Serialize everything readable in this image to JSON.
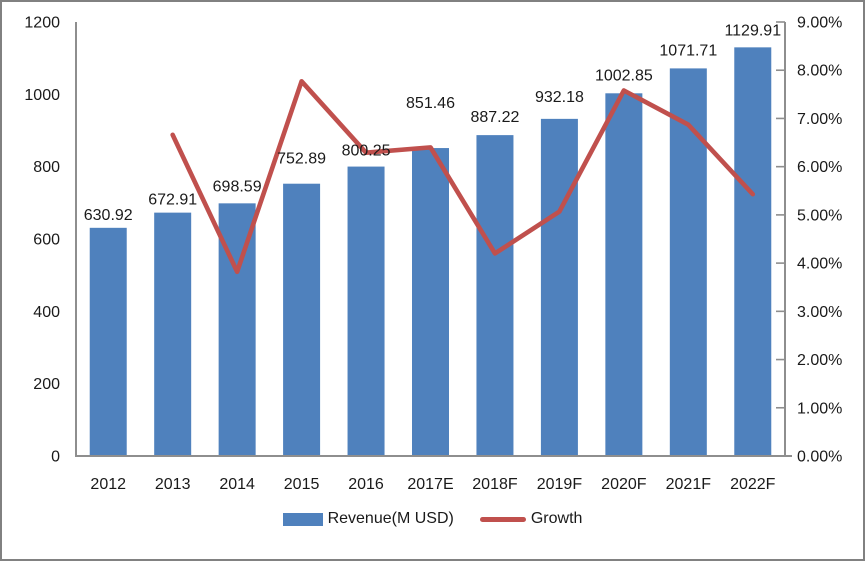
{
  "frame": {
    "background": "#ffffff",
    "border_color": "#818181"
  },
  "chart_data": {
    "type": "bar",
    "subtype": "bar+line combo, dual axis",
    "title": "",
    "xlabel": "",
    "ylabel": "",
    "grid": false,
    "legend_position": "bottom",
    "text_color": "#1a1a1a",
    "axis_color": "#8e8e8e",
    "categories": [
      "2012",
      "2013",
      "2014",
      "2015",
      "2016",
      "2017E",
      "2018F",
      "2019F",
      "2020F",
      "2021F",
      "2022F"
    ],
    "series": [
      {
        "name": "Revenue(M USD)",
        "type": "bar",
        "axis": "left",
        "color": "#4f81bd",
        "values": [
          630.92,
          672.91,
          698.59,
          752.89,
          800.25,
          851.46,
          887.22,
          932.18,
          1002.85,
          1071.71,
          1129.91
        ],
        "labels": [
          "630.92",
          "672.91",
          "698.59",
          "752.89",
          "800.25",
          "851.46",
          "887.22",
          "932.18",
          "1002.85",
          "1071.71",
          "1129.91"
        ]
      },
      {
        "name": "Growth",
        "type": "line",
        "axis": "right",
        "color": "#c0504d",
        "values": [
          null,
          6.66,
          3.82,
          7.77,
          6.29,
          6.4,
          4.2,
          5.07,
          7.58,
          6.87,
          5.43
        ]
      }
    ],
    "left_axis": {
      "min": 0,
      "max": 1200,
      "step": 200,
      "tick_labels": [
        "0",
        "200",
        "400",
        "600",
        "800",
        "1000",
        "1200"
      ]
    },
    "right_axis": {
      "min": 0,
      "max": 9,
      "step": 1,
      "tick_labels": [
        "0.00%",
        "1.00%",
        "2.00%",
        "3.00%",
        "4.00%",
        "5.00%",
        "6.00%",
        "7.00%",
        "8.00%",
        "9.00%"
      ]
    },
    "label_dy": [
      0,
      0,
      -4,
      -12,
      -3,
      -32,
      -5,
      -9,
      -5,
      -5,
      -4
    ]
  }
}
